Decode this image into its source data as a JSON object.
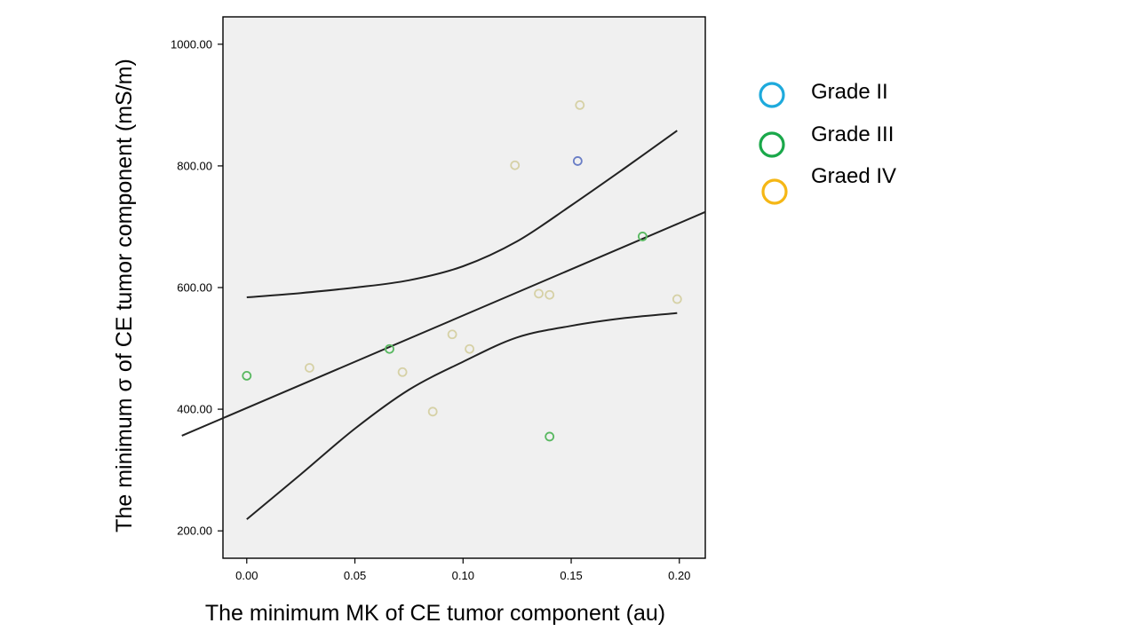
{
  "chart_data": {
    "type": "scatter",
    "title": "",
    "xlabel": "The minimum MK of CE tumor component (au)",
    "ylabel": "The minimum σ of CE tumor component (mS/m)",
    "xlim": [
      -0.011,
      0.212
    ],
    "ylim": [
      155,
      1045
    ],
    "x_ticks": [
      0.0,
      0.05,
      0.1,
      0.15,
      0.2
    ],
    "x_tick_labels": [
      "0.00",
      "0.05",
      "0.10",
      "0.15",
      "0.20"
    ],
    "y_ticks": [
      200,
      400,
      600,
      800,
      1000
    ],
    "y_tick_labels": [
      "200.00",
      "400.00",
      "600.00",
      "800.00",
      "1000.00"
    ],
    "grid": false,
    "legend_position": "right",
    "series": [
      {
        "name": "Grade II",
        "legend_color": "#1eaadc",
        "marker_color": "#6a7ec6",
        "x": [
          0.153
        ],
        "y": [
          808
        ]
      },
      {
        "name": "Grade III",
        "legend_color": "#1aa84a",
        "marker_color": "#58b860",
        "x": [
          0.0,
          0.066,
          0.14,
          0.183
        ],
        "y": [
          455,
          499,
          355,
          684
        ]
      },
      {
        "name": "Graed IV",
        "legend_color": "#f5b716",
        "marker_color": "#d6d1a6",
        "x": [
          0.029,
          0.072,
          0.086,
          0.095,
          0.103,
          0.124,
          0.135,
          0.14,
          0.154,
          0.199
        ],
        "y": [
          468,
          461,
          396,
          523,
          499,
          801,
          590,
          588,
          900,
          581
        ]
      }
    ],
    "fit_line": {
      "slope": 1520,
      "intercept": 402
    },
    "confidence_band": {
      "x": [
        0.0,
        0.025,
        0.05,
        0.075,
        0.1,
        0.125,
        0.15,
        0.175,
        0.199
      ],
      "upper": [
        584,
        591,
        600,
        612,
        635,
        676,
        735,
        797,
        858
      ],
      "lower": [
        219,
        293,
        368,
        432,
        478,
        518,
        537,
        550,
        558
      ]
    }
  }
}
